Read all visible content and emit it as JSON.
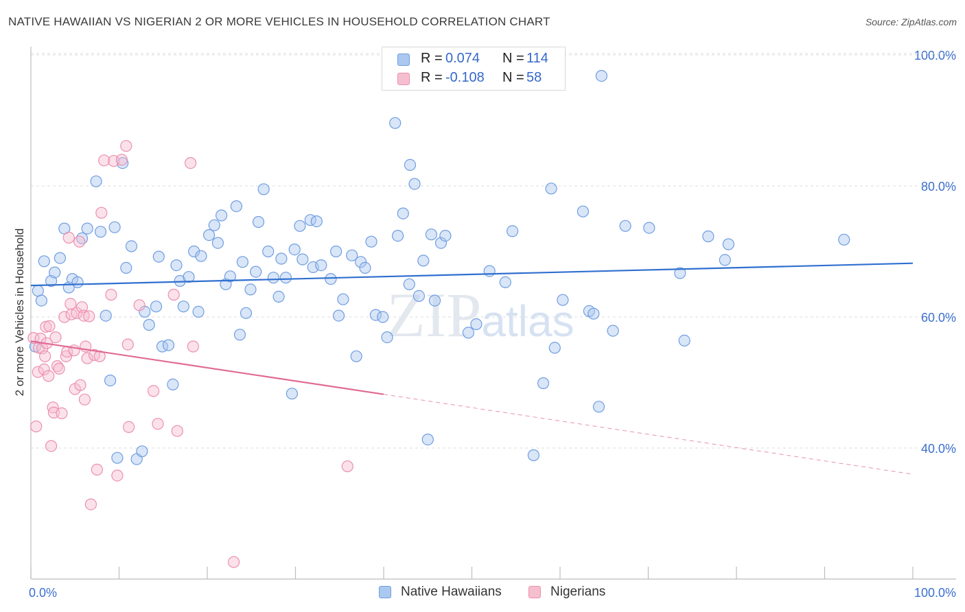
{
  "header": {
    "title": "NATIVE HAWAIIAN VS NIGERIAN 2 OR MORE VEHICLES IN HOUSEHOLD CORRELATION CHART",
    "source": "Source: ZipAtlas.com"
  },
  "legend": {
    "rows": [
      {
        "r_label": "R =",
        "r_value": "0.074",
        "n_label": "N =",
        "n_value": "114"
      },
      {
        "r_label": "R =",
        "r_value": "-0.108",
        "n_label": "N =",
        "n_value": "58"
      }
    ]
  },
  "bottom_legend": {
    "items": [
      "Native Hawaiians",
      "Nigerians"
    ]
  },
  "colors": {
    "blue_fill": "#aac8f0",
    "blue_stroke": "#6f9de0",
    "blue_line": "#2f6fcf",
    "pink_fill": "#f6bfd0",
    "pink_stroke": "#ec8fae",
    "pink_line": "#e06a95",
    "axis_text": "#3b6fd0",
    "grid": "#dcdcdc"
  },
  "chart_data": {
    "type": "scatter",
    "title": "NATIVE HAWAIIAN VS NIGERIAN 2 OR MORE VEHICLES IN HOUSEHOLD CORRELATION CHART",
    "xlabel": "",
    "ylabel": "2 or more Vehicles in Household",
    "xlim": [
      0,
      100
    ],
    "ylim": [
      20,
      102
    ],
    "x_tick_labels": [
      "0.0%",
      "100.0%"
    ],
    "y_ticks": [
      40,
      60,
      80,
      100
    ],
    "y_tick_labels": [
      "40.0%",
      "60.0%",
      "80.0%",
      "100.0%"
    ],
    "watermark": "ZIPatlas",
    "series": [
      {
        "name": "Native Hawaiians",
        "r": 0.074,
        "n": 114,
        "trend": {
          "x0": 0,
          "y0": 64.8,
          "x1": 100,
          "y1": 68.2
        },
        "points": [
          [
            0.5,
            55.5
          ],
          [
            0.8,
            64.0
          ],
          [
            1.2,
            62.5
          ],
          [
            1.5,
            68.5
          ],
          [
            2.3,
            65.5
          ],
          [
            2.7,
            66.8
          ],
          [
            3.3,
            69.0
          ],
          [
            3.8,
            73.5
          ],
          [
            4.3,
            64.5
          ],
          [
            4.7,
            65.8
          ],
          [
            5.3,
            65.3
          ],
          [
            5.8,
            72.0
          ],
          [
            6.4,
            73.5
          ],
          [
            7.4,
            80.7
          ],
          [
            7.9,
            73.0
          ],
          [
            8.5,
            60.2
          ],
          [
            9.0,
            50.3
          ],
          [
            9.5,
            73.7
          ],
          [
            9.8,
            38.5
          ],
          [
            10.4,
            83.5
          ],
          [
            10.8,
            67.5
          ],
          [
            11.4,
            70.8
          ],
          [
            12.0,
            38.3
          ],
          [
            12.6,
            39.5
          ],
          [
            12.9,
            60.8
          ],
          [
            13.4,
            58.8
          ],
          [
            14.2,
            61.6
          ],
          [
            14.5,
            69.2
          ],
          [
            14.9,
            55.5
          ],
          [
            15.6,
            55.7
          ],
          [
            16.1,
            49.7
          ],
          [
            16.5,
            67.9
          ],
          [
            16.9,
            65.5
          ],
          [
            17.3,
            61.6
          ],
          [
            17.9,
            66.1
          ],
          [
            18.5,
            70.0
          ],
          [
            19.0,
            60.8
          ],
          [
            19.3,
            69.3
          ],
          [
            20.2,
            72.5
          ],
          [
            20.8,
            74.0
          ],
          [
            21.2,
            71.3
          ],
          [
            21.6,
            75.5
          ],
          [
            22.1,
            65.0
          ],
          [
            22.6,
            66.2
          ],
          [
            23.3,
            76.9
          ],
          [
            23.7,
            57.3
          ],
          [
            24.0,
            68.4
          ],
          [
            24.4,
            60.6
          ],
          [
            24.9,
            64.2
          ],
          [
            25.5,
            66.9
          ],
          [
            25.8,
            74.5
          ],
          [
            26.4,
            79.5
          ],
          [
            26.9,
            70.0
          ],
          [
            27.5,
            66.0
          ],
          [
            28.1,
            63.1
          ],
          [
            28.4,
            68.9
          ],
          [
            28.9,
            66.0
          ],
          [
            29.6,
            48.3
          ],
          [
            29.9,
            70.3
          ],
          [
            30.5,
            73.9
          ],
          [
            30.8,
            68.8
          ],
          [
            31.7,
            74.8
          ],
          [
            32.0,
            67.6
          ],
          [
            32.4,
            74.6
          ],
          [
            32.9,
            67.9
          ],
          [
            34.0,
            65.8
          ],
          [
            34.6,
            70.0
          ],
          [
            34.9,
            60.2
          ],
          [
            35.4,
            62.7
          ],
          [
            36.4,
            69.4
          ],
          [
            36.9,
            54.0
          ],
          [
            37.4,
            68.4
          ],
          [
            37.9,
            67.5
          ],
          [
            38.6,
            71.5
          ],
          [
            39.1,
            60.3
          ],
          [
            39.9,
            60.0
          ],
          [
            40.4,
            56.9
          ],
          [
            41.3,
            89.6
          ],
          [
            41.6,
            72.4
          ],
          [
            42.2,
            75.8
          ],
          [
            43.0,
            83.2
          ],
          [
            42.9,
            65.0
          ],
          [
            43.5,
            80.3
          ],
          [
            44.0,
            63.2
          ],
          [
            44.5,
            68.6
          ],
          [
            45.0,
            41.3
          ],
          [
            45.4,
            72.6
          ],
          [
            45.8,
            62.5
          ],
          [
            46.5,
            71.3
          ],
          [
            47.0,
            72.4
          ],
          [
            49.6,
            57.6
          ],
          [
            50.5,
            58.9
          ],
          [
            52.0,
            67.0
          ],
          [
            53.8,
            65.3
          ],
          [
            54.6,
            73.1
          ],
          [
            57.0,
            38.9
          ],
          [
            58.1,
            49.9
          ],
          [
            59.0,
            79.6
          ],
          [
            59.4,
            55.3
          ],
          [
            60.3,
            62.6
          ],
          [
            62.6,
            76.1
          ],
          [
            63.3,
            60.9
          ],
          [
            63.8,
            60.5
          ],
          [
            64.4,
            46.3
          ],
          [
            64.7,
            96.8
          ],
          [
            66.0,
            57.9
          ],
          [
            67.4,
            73.9
          ],
          [
            70.1,
            73.6
          ],
          [
            73.6,
            66.7
          ],
          [
            74.1,
            56.4
          ],
          [
            76.8,
            72.3
          ],
          [
            78.7,
            68.7
          ],
          [
            79.1,
            71.1
          ],
          [
            92.2,
            71.8
          ]
        ]
      },
      {
        "name": "Nigerians",
        "r": -0.108,
        "n": 58,
        "trend": {
          "x0": 0,
          "y0": 56.3,
          "x1": 40,
          "y1": 48.2,
          "dash_x1": 100,
          "dash_y1": 36.0
        },
        "points": [
          [
            0.3,
            56.8
          ],
          [
            0.6,
            43.3
          ],
          [
            0.8,
            51.6
          ],
          [
            0.9,
            55.3
          ],
          [
            1.1,
            56.7
          ],
          [
            1.3,
            55.2
          ],
          [
            1.5,
            52.0
          ],
          [
            1.6,
            54.0
          ],
          [
            1.7,
            58.5
          ],
          [
            1.8,
            56.0
          ],
          [
            2.0,
            51.0
          ],
          [
            2.1,
            58.6
          ],
          [
            2.3,
            40.3
          ],
          [
            2.5,
            46.2
          ],
          [
            2.6,
            45.4
          ],
          [
            2.8,
            56.9
          ],
          [
            3.0,
            52.5
          ],
          [
            3.2,
            52.1
          ],
          [
            3.5,
            45.3
          ],
          [
            3.8,
            60.0
          ],
          [
            4.0,
            54.0
          ],
          [
            4.1,
            54.7
          ],
          [
            4.3,
            72.1
          ],
          [
            4.5,
            62.0
          ],
          [
            4.6,
            60.4
          ],
          [
            4.9,
            54.9
          ],
          [
            5.0,
            49.0
          ],
          [
            5.2,
            60.6
          ],
          [
            5.5,
            71.5
          ],
          [
            5.6,
            49.6
          ],
          [
            5.8,
            61.5
          ],
          [
            6.0,
            60.2
          ],
          [
            6.1,
            47.4
          ],
          [
            6.2,
            55.5
          ],
          [
            6.4,
            53.7
          ],
          [
            6.6,
            60.1
          ],
          [
            6.8,
            31.4
          ],
          [
            7.2,
            54.2
          ],
          [
            7.5,
            36.7
          ],
          [
            7.8,
            54.0
          ],
          [
            8.0,
            75.9
          ],
          [
            8.3,
            83.9
          ],
          [
            9.1,
            63.4
          ],
          [
            9.4,
            83.8
          ],
          [
            9.8,
            35.8
          ],
          [
            10.3,
            84.0
          ],
          [
            10.8,
            86.1
          ],
          [
            11.0,
            55.8
          ],
          [
            11.1,
            43.2
          ],
          [
            12.3,
            61.8
          ],
          [
            13.9,
            48.7
          ],
          [
            14.4,
            43.7
          ],
          [
            16.2,
            63.4
          ],
          [
            16.6,
            42.6
          ],
          [
            18.1,
            83.5
          ],
          [
            18.4,
            55.5
          ],
          [
            23.0,
            22.6
          ],
          [
            35.9,
            37.2
          ]
        ]
      }
    ]
  }
}
